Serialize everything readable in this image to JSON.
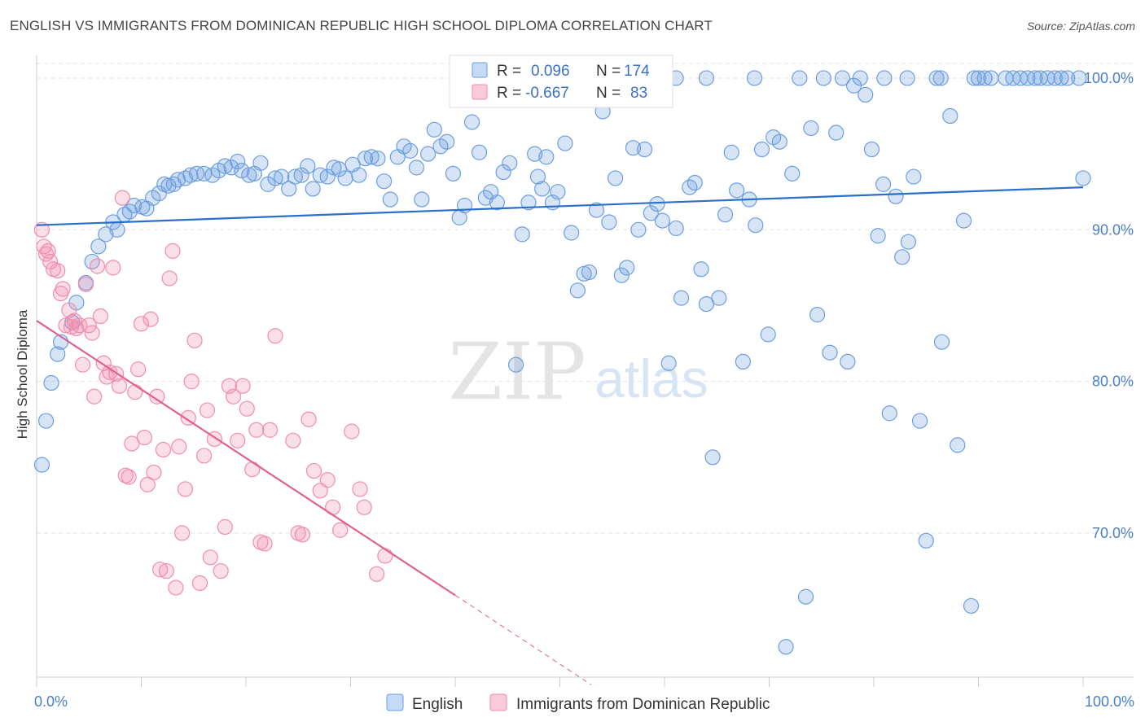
{
  "title": "ENGLISH VS IMMIGRANTS FROM DOMINICAN REPUBLIC HIGH SCHOOL DIPLOMA CORRELATION CHART",
  "source": "Source: ZipAtlas.com",
  "colors": {
    "english": "#6b9ee0",
    "dominican": "#f08cac",
    "english_line": "#2a6fc9",
    "dominican_line": "#e0608f"
  },
  "chart_data": {
    "type": "scatter",
    "title": "ENGLISH VS IMMIGRANTS FROM DOMINICAN REPUBLIC HIGH SCHOOL DIPLOMA CORRELATION CHART",
    "xlabel": "",
    "ylabel": "High School Diploma",
    "xlim": [
      0,
      100
    ],
    "ylim": [
      60.5,
      101.5
    ],
    "x_tick_labels": [
      "0.0%",
      "100.0%"
    ],
    "y_ticks": [
      {
        "value": 70,
        "label": "70.0%"
      },
      {
        "value": 80,
        "label": "80.0%"
      },
      {
        "value": 90,
        "label": "90.0%"
      },
      {
        "value": 100,
        "label": "100.0%"
      }
    ],
    "grid": true,
    "legend": {
      "placement": "top-center",
      "rows": [
        {
          "r_label": "R =",
          "r": "0.096",
          "n_label": "N =",
          "n": "174"
        },
        {
          "r_label": "R =",
          "r": "-0.667",
          "n_label": "N =",
          "n": "83"
        }
      ]
    },
    "series": [
      {
        "name": "English",
        "trend": {
          "x": [
            0,
            100
          ],
          "y": [
            90.3,
            92.8
          ]
        },
        "points": [
          [
            0.5,
            74.5
          ],
          [
            0.9,
            77.4
          ],
          [
            1.4,
            79.9
          ],
          [
            2.0,
            81.8
          ],
          [
            2.3,
            82.6
          ],
          [
            3.4,
            83.9
          ],
          [
            3.8,
            85.2
          ],
          [
            4.7,
            86.5
          ],
          [
            5.3,
            87.9
          ],
          [
            5.9,
            88.9
          ],
          [
            6.6,
            89.7
          ],
          [
            7.3,
            90.5
          ],
          [
            7.7,
            90.0
          ],
          [
            8.4,
            91.0
          ],
          [
            8.9,
            91.2
          ],
          [
            9.3,
            91.6
          ],
          [
            10.1,
            91.5
          ],
          [
            10.5,
            91.4
          ],
          [
            11.1,
            92.1
          ],
          [
            11.7,
            92.4
          ],
          [
            12.2,
            93.0
          ],
          [
            12.6,
            92.9
          ],
          [
            13.1,
            93.0
          ],
          [
            13.5,
            93.3
          ],
          [
            14.2,
            93.4
          ],
          [
            14.7,
            93.6
          ],
          [
            15.3,
            93.7
          ],
          [
            16.0,
            93.7
          ],
          [
            16.8,
            93.6
          ],
          [
            17.4,
            93.9
          ],
          [
            18.0,
            94.2
          ],
          [
            18.6,
            94.1
          ],
          [
            19.2,
            94.5
          ],
          [
            19.6,
            93.9
          ],
          [
            20.3,
            93.6
          ],
          [
            20.8,
            93.7
          ],
          [
            21.4,
            94.4
          ],
          [
            22.1,
            93.0
          ],
          [
            22.8,
            93.4
          ],
          [
            23.4,
            93.5
          ],
          [
            24.1,
            92.7
          ],
          [
            24.7,
            93.5
          ],
          [
            25.3,
            93.6
          ],
          [
            25.9,
            94.2
          ],
          [
            26.4,
            92.7
          ],
          [
            27.1,
            93.6
          ],
          [
            27.8,
            93.5
          ],
          [
            28.4,
            94.1
          ],
          [
            28.9,
            94.0
          ],
          [
            29.5,
            93.4
          ],
          [
            30.2,
            94.3
          ],
          [
            30.8,
            93.6
          ],
          [
            31.4,
            94.7
          ],
          [
            32.0,
            94.8
          ],
          [
            32.6,
            94.7
          ],
          [
            33.2,
            93.2
          ],
          [
            33.8,
            92.0
          ],
          [
            34.5,
            94.8
          ],
          [
            35.1,
            95.5
          ],
          [
            35.7,
            95.2
          ],
          [
            36.3,
            94.1
          ],
          [
            36.8,
            92.0
          ],
          [
            37.4,
            95.0
          ],
          [
            38.0,
            96.6
          ],
          [
            38.6,
            95.5
          ],
          [
            39.2,
            95.8
          ],
          [
            39.8,
            93.7
          ],
          [
            40.4,
            90.8
          ],
          [
            40.9,
            91.6
          ],
          [
            41.6,
            97.1
          ],
          [
            42.3,
            95.1
          ],
          [
            42.9,
            92.1
          ],
          [
            43.4,
            92.5
          ],
          [
            44.0,
            91.8
          ],
          [
            44.6,
            93.8
          ],
          [
            45.2,
            94.4
          ],
          [
            45.8,
            81.1
          ],
          [
            46.4,
            89.7
          ],
          [
            47.0,
            91.8
          ],
          [
            47.6,
            95.0
          ],
          [
            47.9,
            93.5
          ],
          [
            48.3,
            92.7
          ],
          [
            48.7,
            94.8
          ],
          [
            49.3,
            91.8
          ],
          [
            49.8,
            92.5
          ],
          [
            50.5,
            95.7
          ],
          [
            51.1,
            89.8
          ],
          [
            51.7,
            86.0
          ],
          [
            52.3,
            87.1
          ],
          [
            52.8,
            87.2
          ],
          [
            53.5,
            91.3
          ],
          [
            54.1,
            97.8
          ],
          [
            54.7,
            90.5
          ],
          [
            55.3,
            93.4
          ],
          [
            55.9,
            87.0
          ],
          [
            56.4,
            87.5
          ],
          [
            57.0,
            95.4
          ],
          [
            57.5,
            90.0
          ],
          [
            58.1,
            95.3
          ],
          [
            58.7,
            91.1
          ],
          [
            59.3,
            91.7
          ],
          [
            59.8,
            90.6
          ],
          [
            60.4,
            81.2
          ],
          [
            61.1,
            90.1
          ],
          [
            61.6,
            85.5
          ],
          [
            62.4,
            92.8
          ],
          [
            62.9,
            93.1
          ],
          [
            63.5,
            87.4
          ],
          [
            64.0,
            85.1
          ],
          [
            64.6,
            75.0
          ],
          [
            65.2,
            85.5
          ],
          [
            65.8,
            91.0
          ],
          [
            66.4,
            95.1
          ],
          [
            66.9,
            92.6
          ],
          [
            67.5,
            81.3
          ],
          [
            68.1,
            92.0
          ],
          [
            68.7,
            90.3
          ],
          [
            69.3,
            95.3
          ],
          [
            69.9,
            83.1
          ],
          [
            70.4,
            96.1
          ],
          [
            71.0,
            95.8
          ],
          [
            71.6,
            62.5
          ],
          [
            72.2,
            93.7
          ],
          [
            72.9,
            100.0
          ],
          [
            73.5,
            65.8
          ],
          [
            74.0,
            96.7
          ],
          [
            74.6,
            84.4
          ],
          [
            75.2,
            100.0
          ],
          [
            75.8,
            81.9
          ],
          [
            76.4,
            96.4
          ],
          [
            77.0,
            100.0
          ],
          [
            77.5,
            81.3
          ],
          [
            78.1,
            99.5
          ],
          [
            78.7,
            100.0
          ],
          [
            79.2,
            98.9
          ],
          [
            79.8,
            95.3
          ],
          [
            80.4,
            89.6
          ],
          [
            80.9,
            93.0
          ],
          [
            81.5,
            77.9
          ],
          [
            82.1,
            92.2
          ],
          [
            82.7,
            88.2
          ],
          [
            83.3,
            89.2
          ],
          [
            83.8,
            93.5
          ],
          [
            84.4,
            77.4
          ],
          [
            85.0,
            69.5
          ],
          [
            86.0,
            100.0
          ],
          [
            86.5,
            82.6
          ],
          [
            87.3,
            97.5
          ],
          [
            88.0,
            75.8
          ],
          [
            88.6,
            90.6
          ],
          [
            89.3,
            65.2
          ],
          [
            90.0,
            100.0
          ],
          [
            90.6,
            100.0
          ],
          [
            91.2,
            100.0
          ],
          [
            92.6,
            100.0
          ],
          [
            93.3,
            100.0
          ],
          [
            94.0,
            100.0
          ],
          [
            94.7,
            100.0
          ],
          [
            95.4,
            100.0
          ],
          [
            96.6,
            100.0
          ],
          [
            97.3,
            100.0
          ],
          [
            97.9,
            100.0
          ],
          [
            98.5,
            100.0
          ],
          [
            100.0,
            93.4
          ],
          [
            68.6,
            100.0
          ],
          [
            64.0,
            100.0
          ],
          [
            61.1,
            100.0
          ],
          [
            55.0,
            100.0
          ],
          [
            99.6,
            100.0
          ],
          [
            95.9,
            100.0
          ],
          [
            89.6,
            100.0
          ],
          [
            81.0,
            100.0
          ],
          [
            83.2,
            100.0
          ],
          [
            86.4,
            100.0
          ]
        ]
      },
      {
        "name": "Immigrants from Dominican Republic",
        "trend": {
          "x": [
            0,
            40
          ],
          "y": [
            84.0,
            65.9
          ]
        },
        "trend_extension": {
          "x": [
            40,
            53
          ],
          "y": [
            65.9,
            60.0
          ]
        },
        "points": [
          [
            0.5,
            90.0
          ],
          [
            0.7,
            88.9
          ],
          [
            0.9,
            88.4
          ],
          [
            1.1,
            88.6
          ],
          [
            1.3,
            87.9
          ],
          [
            1.6,
            87.4
          ],
          [
            2.0,
            87.3
          ],
          [
            2.3,
            85.8
          ],
          [
            2.5,
            86.1
          ],
          [
            2.8,
            83.7
          ],
          [
            3.1,
            84.7
          ],
          [
            3.3,
            83.6
          ],
          [
            3.6,
            84.0
          ],
          [
            3.8,
            83.5
          ],
          [
            4.1,
            83.7
          ],
          [
            4.4,
            81.1
          ],
          [
            4.7,
            86.4
          ],
          [
            5.0,
            83.7
          ],
          [
            5.3,
            83.2
          ],
          [
            5.5,
            79.0
          ],
          [
            5.8,
            87.6
          ],
          [
            6.1,
            84.3
          ],
          [
            6.4,
            81.2
          ],
          [
            6.7,
            80.3
          ],
          [
            7.0,
            80.6
          ],
          [
            7.3,
            87.5
          ],
          [
            7.6,
            80.5
          ],
          [
            7.9,
            79.7
          ],
          [
            8.2,
            92.1
          ],
          [
            8.5,
            73.8
          ],
          [
            8.8,
            73.7
          ],
          [
            9.1,
            75.9
          ],
          [
            9.4,
            79.3
          ],
          [
            9.7,
            80.8
          ],
          [
            10.0,
            83.8
          ],
          [
            10.3,
            76.3
          ],
          [
            10.6,
            73.2
          ],
          [
            10.9,
            84.1
          ],
          [
            11.2,
            74.0
          ],
          [
            11.5,
            79.0
          ],
          [
            11.8,
            67.6
          ],
          [
            12.1,
            75.5
          ],
          [
            12.4,
            67.5
          ],
          [
            12.7,
            86.8
          ],
          [
            13.0,
            88.6
          ],
          [
            13.3,
            66.4
          ],
          [
            13.6,
            75.7
          ],
          [
            13.9,
            70.0
          ],
          [
            14.2,
            72.9
          ],
          [
            14.5,
            77.6
          ],
          [
            14.8,
            80.0
          ],
          [
            15.1,
            82.7
          ],
          [
            15.6,
            66.7
          ],
          [
            16.0,
            75.1
          ],
          [
            16.3,
            78.1
          ],
          [
            16.6,
            68.4
          ],
          [
            17.0,
            76.2
          ],
          [
            17.6,
            67.5
          ],
          [
            18.0,
            70.4
          ],
          [
            18.4,
            79.7
          ],
          [
            18.8,
            79.0
          ],
          [
            19.2,
            76.1
          ],
          [
            19.7,
            79.7
          ],
          [
            20.1,
            78.2
          ],
          [
            20.6,
            74.2
          ],
          [
            21.0,
            76.8
          ],
          [
            21.4,
            69.4
          ],
          [
            21.8,
            69.3
          ],
          [
            22.3,
            76.8
          ],
          [
            22.8,
            83.0
          ],
          [
            24.5,
            76.1
          ],
          [
            25.0,
            70.0
          ],
          [
            25.4,
            69.9
          ],
          [
            26.0,
            77.5
          ],
          [
            26.5,
            74.1
          ],
          [
            27.1,
            72.8
          ],
          [
            27.8,
            73.5
          ],
          [
            28.3,
            71.7
          ],
          [
            29.0,
            70.2
          ],
          [
            30.1,
            76.7
          ],
          [
            30.9,
            72.9
          ],
          [
            31.3,
            71.7
          ],
          [
            32.5,
            67.3
          ],
          [
            33.3,
            68.5
          ]
        ]
      }
    ]
  },
  "bottom_legend": {
    "english": "English",
    "dominican": "Immigrants from Dominican Republic"
  },
  "watermark": {
    "zip": "ZIP",
    "atlas": "atlas"
  }
}
